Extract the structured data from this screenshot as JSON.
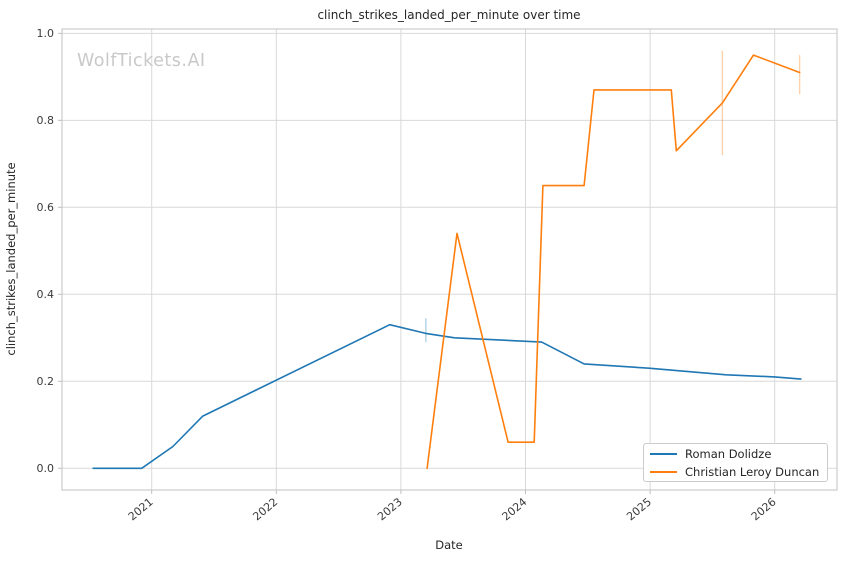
{
  "title": "clinch_strikes_landed_per_minute over time",
  "watermark": "WolfTickets.AI",
  "legend": {
    "items": [
      {
        "label": "Roman Dolidze",
        "color": "#1f77b4"
      },
      {
        "label": "Christian Leroy Duncan",
        "color": "#ff7f0e"
      }
    ]
  },
  "chart_data": {
    "type": "line",
    "title": "clinch_strikes_landed_per_minute over time",
    "xlabel": "Date",
    "ylabel": "clinch_strikes_landed_per_minute",
    "x_ticks": [
      2021,
      2022,
      2023,
      2024,
      2025,
      2026
    ],
    "y_ticks": [
      0.0,
      0.2,
      0.4,
      0.6,
      0.8,
      1.0
    ],
    "xlim": [
      2020.28,
      2026.5
    ],
    "ylim": [
      -0.05,
      1.01
    ],
    "grid": true,
    "legend_position": "lower right",
    "colors": {
      "accent_blue": "#1f77b4",
      "accent_orange": "#ff7f0e",
      "grid": "#d9d9d9",
      "watermark": "#c9c9c9"
    },
    "series": [
      {
        "name": "Roman Dolidze",
        "color": "#1f77b4",
        "points": [
          [
            2020.53,
            0.0
          ],
          [
            2020.92,
            0.0
          ],
          [
            2021.17,
            0.05
          ],
          [
            2021.41,
            0.12
          ],
          [
            2022.91,
            0.33
          ],
          [
            2023.2,
            0.31
          ],
          [
            2023.43,
            0.3
          ],
          [
            2024.13,
            0.29
          ],
          [
            2024.47,
            0.24
          ],
          [
            2024.99,
            0.23
          ],
          [
            2025.61,
            0.215
          ],
          [
            2026.0,
            0.21
          ],
          [
            2026.21,
            0.205
          ]
        ],
        "error_bars": [
          {
            "x": 2023.2,
            "lo": 0.29,
            "hi": 0.345
          }
        ]
      },
      {
        "name": "Christian Leroy Duncan",
        "color": "#ff7f0e",
        "points": [
          [
            2023.21,
            0.0
          ],
          [
            2023.45,
            0.54
          ],
          [
            2023.86,
            0.06
          ],
          [
            2024.07,
            0.06
          ],
          [
            2024.14,
            0.65
          ],
          [
            2024.47,
            0.65
          ],
          [
            2024.55,
            0.87
          ],
          [
            2025.17,
            0.87
          ],
          [
            2025.21,
            0.73
          ],
          [
            2025.58,
            0.84
          ],
          [
            2025.83,
            0.95
          ],
          [
            2026.2,
            0.91
          ]
        ],
        "error_bars": [
          {
            "x": 2025.58,
            "lo": 0.72,
            "hi": 0.96
          },
          {
            "x": 2026.2,
            "lo": 0.86,
            "hi": 0.95
          }
        ]
      }
    ]
  }
}
